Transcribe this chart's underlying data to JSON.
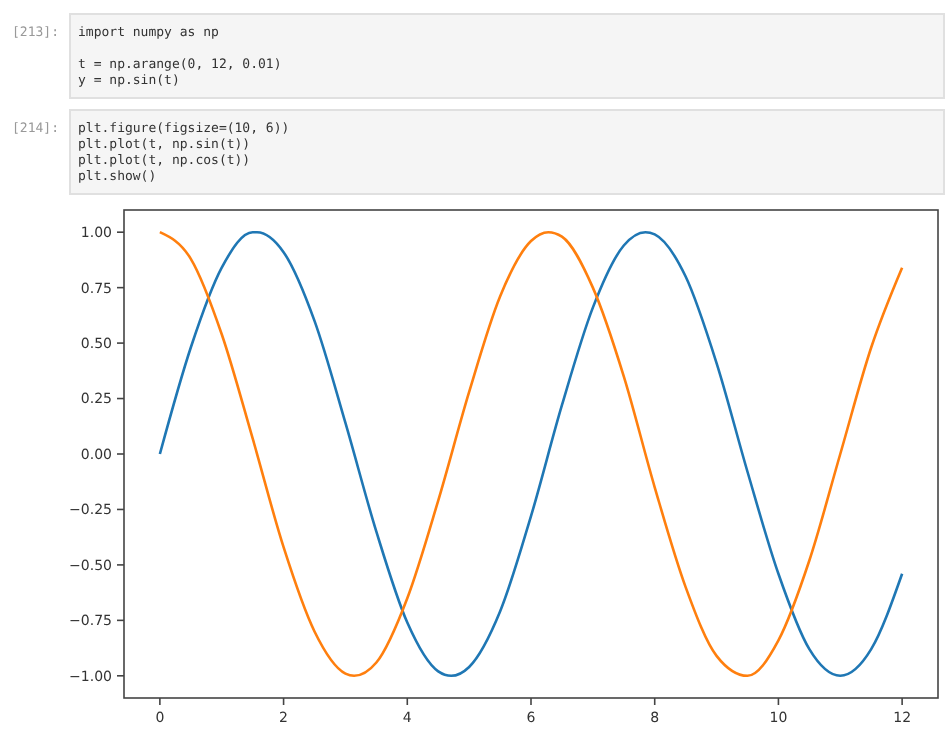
{
  "chart_data": {
    "type": "line",
    "annotations": [
      "[213]:",
      "import numpy as np\n\nt = np.arange(0, 12, 0.01)\ny = np.sin(t)",
      "[214]:",
      "plt.figure(figsize=(10, 6))\nplt.plot(t, np.sin(t))\nplt.plot(t, np.cos(t))\nplt.show()"
    ],
    "series": [
      {
        "color": "#1f77b4",
        "x": [
          0,
          0.5,
          1,
          1.5,
          1.57,
          2,
          2.5,
          3,
          3.5,
          4,
          4.5,
          4.71,
          5,
          5.5,
          6,
          6.5,
          7,
          7.5,
          7.85,
          8,
          8.5,
          9,
          9.5,
          10,
          10.5,
          11,
          11.5,
          12
        ],
        "values": [
          0,
          0.48,
          0.84,
          1.0,
          1.0,
          0.91,
          0.6,
          0.14,
          -0.35,
          -0.76,
          -0.98,
          -1.0,
          -0.96,
          -0.71,
          -0.28,
          0.22,
          0.66,
          0.94,
          1.0,
          0.99,
          0.8,
          0.41,
          -0.08,
          -0.54,
          -0.88,
          -1.0,
          -0.88,
          -0.54
        ]
      },
      {
        "color": "#ff7f0e",
        "x": [
          0,
          0.5,
          1,
          1.5,
          2,
          2.5,
          3,
          3.14,
          3.5,
          4,
          4.5,
          5,
          5.5,
          6,
          6.28,
          6.5,
          7,
          7.5,
          8,
          8.5,
          9,
          9.5,
          10,
          10.5,
          11,
          11.5,
          12
        ],
        "values": [
          1.0,
          0.88,
          0.54,
          0.07,
          -0.42,
          -0.8,
          -0.99,
          -1.0,
          -0.94,
          -0.65,
          -0.21,
          0.28,
          0.71,
          0.96,
          1.0,
          0.98,
          0.75,
          0.35,
          -0.15,
          -0.6,
          -0.91,
          -1.0,
          -0.84,
          -0.48,
          0.0,
          0.48,
          0.84
        ]
      }
    ],
    "xlim": [
      -0.58,
      12.58
    ],
    "xticks": [
      0,
      2,
      4,
      6,
      8,
      10,
      12
    ],
    "ylim": [
      -1.1,
      1.1
    ],
    "yticks": [
      {
        "value": -1,
        "label": "−1.00"
      },
      {
        "value": -0.75,
        "label": "−0.75"
      },
      {
        "value": -0.5,
        "label": "−0.50"
      },
      {
        "value": -0.25,
        "label": "−0.25"
      },
      {
        "value": 0,
        "label": "0.00"
      },
      {
        "value": 0.25,
        "label": "0.25"
      },
      {
        "value": 0.5,
        "label": "0.50"
      },
      {
        "value": 0.75,
        "label": "0.75"
      },
      {
        "value": 1,
        "label": "1.00"
      }
    ],
    "grid": false
  }
}
